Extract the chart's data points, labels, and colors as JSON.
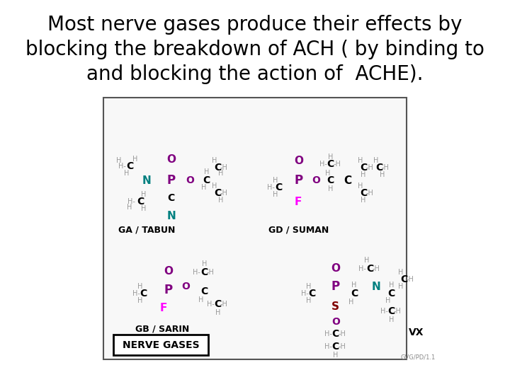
{
  "title_line1": "Most nerve gases produce their effects by",
  "title_line2": "blocking the breakdown of ACH ( by binding to",
  "title_line3": "and blocking the action of  ACHE).",
  "title_fontsize": 20,
  "title_color": "#000000",
  "bg_color": "#ffffff",
  "box_color": "#cccccc",
  "label_tabun": "GA / TABUN",
  "label_suman": "GD / SUMAN",
  "label_sarin": "GB / SARIN",
  "label_vx": "VX",
  "label_nerve": "NERVE GASES",
  "color_P": "#800080",
  "color_O": "#800080",
  "color_N": "#008080",
  "color_F": "#ff00ff",
  "color_S": "#800000",
  "color_C": "#000000",
  "color_H": "#999999",
  "color_label": "#000000",
  "footnote": "GVG/PD/1.1"
}
